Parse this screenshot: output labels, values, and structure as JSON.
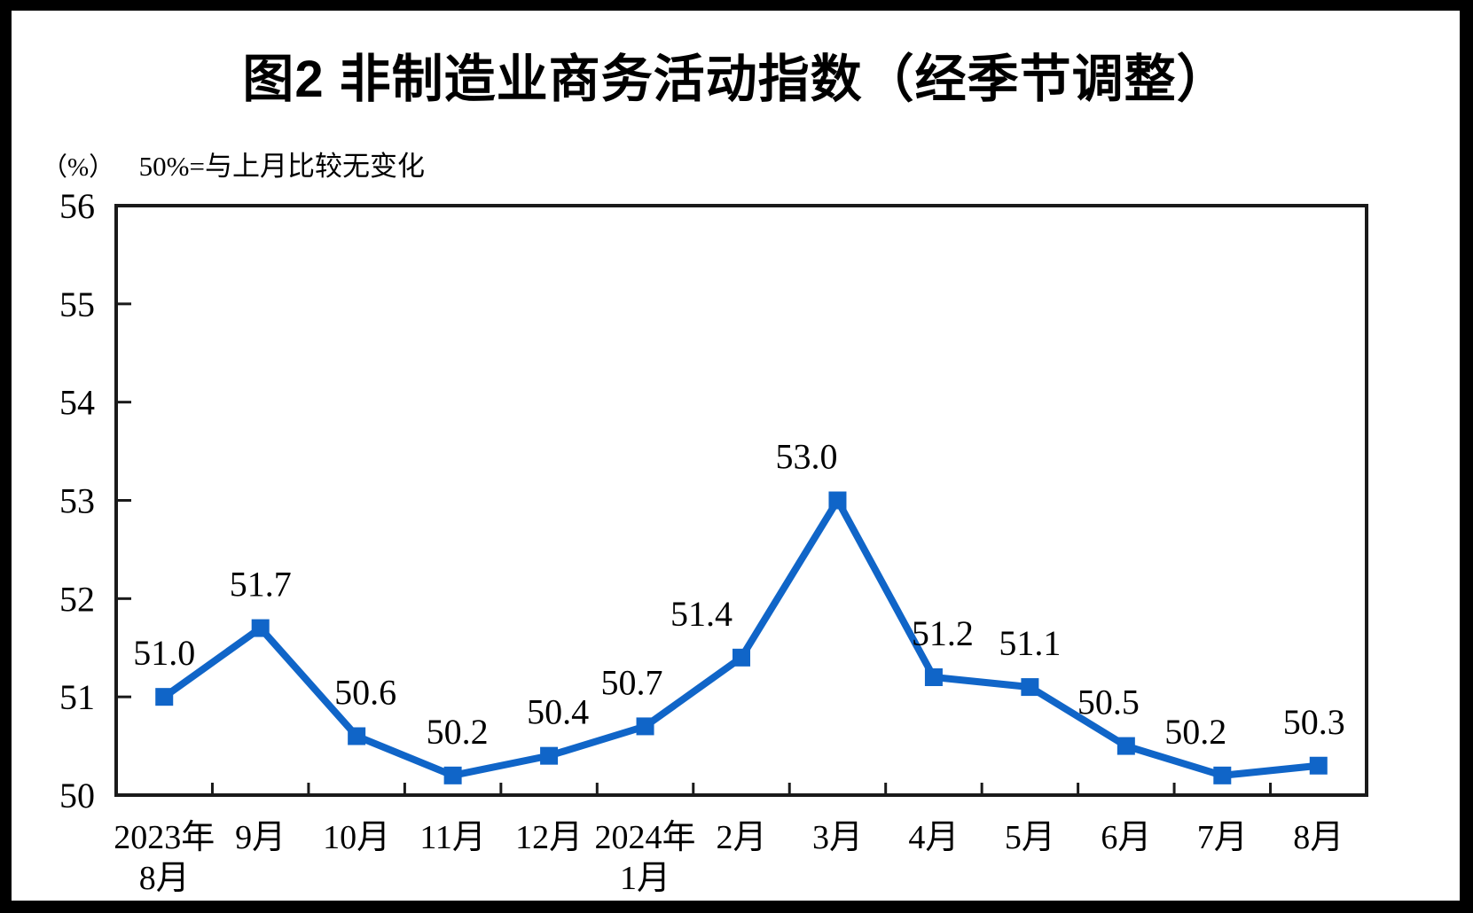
{
  "title": "图2 非制造业商务活动指数（经季节调整）",
  "unit_label": "（%）",
  "note": "50%=与上月比较无变化",
  "colors": {
    "accent": "#1065C8",
    "axis": "#1a1a1a",
    "frame": "#000000",
    "background": "#ffffff"
  },
  "chart_data": {
    "type": "line",
    "title": "图2 非制造业商务活动指数（经季节调整）",
    "subtitle_note": "50%=与上月比较无变化",
    "unit": "%",
    "categories": [
      "2023年\n8月",
      "9月",
      "10月",
      "11月",
      "12月",
      "2024年\n1月",
      "2月",
      "3月",
      "4月",
      "5月",
      "6月",
      "7月",
      "8月"
    ],
    "values": [
      51.0,
      51.7,
      50.6,
      50.2,
      50.4,
      50.7,
      51.4,
      53.0,
      51.2,
      51.1,
      50.5,
      50.2,
      50.3
    ],
    "data_labels": [
      "51.0",
      "51.7",
      "50.6",
      "50.2",
      "50.4",
      "50.7",
      "51.4",
      "53.0",
      "51.2",
      "51.1",
      "50.5",
      "50.2",
      "50.3"
    ],
    "ylim": [
      50,
      56
    ],
    "yticks": [
      50,
      51,
      52,
      53,
      54,
      55,
      56
    ],
    "line_color": "#1065C8",
    "marker": "square",
    "grid": false,
    "legend": null
  }
}
